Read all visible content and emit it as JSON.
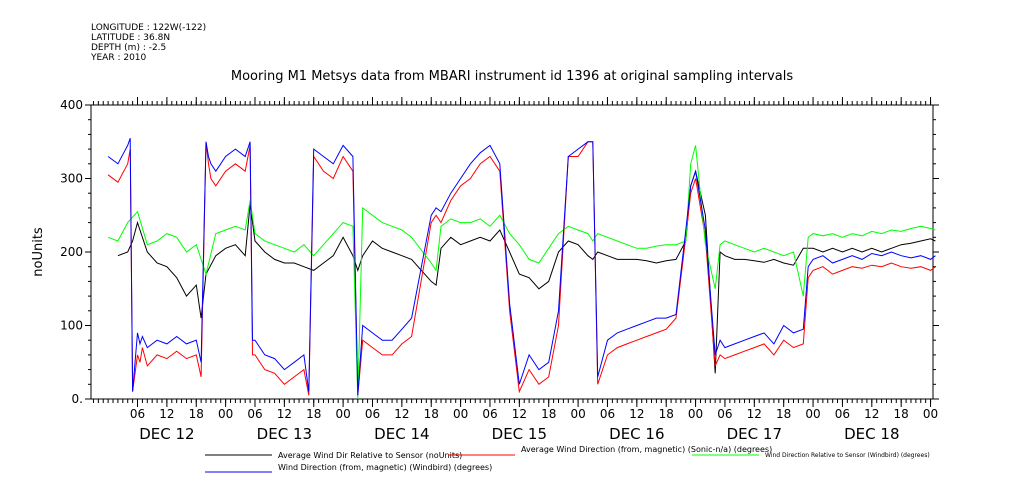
{
  "metadata": {
    "longitude": "LONGITUDE : 122W(-122)",
    "latitude": "LATITUDE : 36.8N",
    "depth": "DEPTH (m) : -2.5",
    "year": "YEAR : 2010"
  },
  "chart_data": {
    "type": "line",
    "title": "Mooring M1 Metsys data from MBARI instrument id 1396 at original sampling intervals",
    "ylabel": "noUnits",
    "ylim": [
      0,
      400
    ],
    "yticks": [
      0,
      100,
      200,
      300,
      400
    ],
    "ytick_labels": [
      "0.",
      "100",
      "200",
      "300",
      "400"
    ],
    "xlim_hours": [
      -6,
      6
    ],
    "hour_ticks": [
      6,
      12,
      18,
      24,
      30,
      36,
      42,
      48,
      54,
      60,
      66,
      72,
      78,
      84,
      90,
      96,
      102,
      108,
      114,
      120,
      126,
      132,
      138,
      144,
      150,
      156,
      162,
      168
    ],
    "hour_labels": [
      "06",
      "12",
      "18",
      "00",
      "06",
      "12",
      "18",
      "00",
      "06",
      "12",
      "18",
      "00",
      "06",
      "12",
      "18",
      "00",
      "06",
      "12",
      "18",
      "00",
      "06",
      "12",
      "18",
      "00",
      "06",
      "12",
      "18",
      "00"
    ],
    "day_labels": [
      "DEC 12",
      "DEC 13",
      "DEC 14",
      "DEC 15",
      "DEC 16",
      "DEC 17",
      "DEC 18"
    ],
    "x_start": "2010-12-12T00:00",
    "x_end": "2010-12-19T02:00",
    "series": [
      {
        "name": "Average Wind Dir Relative to Sensor (noUnits)",
        "color": "#000000",
        "x": [
          2,
          4,
          5,
          6,
          8,
          10,
          12,
          14,
          16,
          18,
          19,
          20,
          22,
          24,
          26,
          28,
          29,
          30,
          32,
          34,
          36,
          38,
          40,
          42,
          44,
          46,
          48,
          50,
          51,
          52,
          54,
          56,
          58,
          60,
          62,
          66,
          67,
          68,
          70,
          72,
          74,
          76,
          78,
          80,
          82,
          84,
          86,
          88,
          90,
          92,
          94,
          96,
          98,
          99,
          100,
          102,
          104,
          106,
          108,
          110,
          112,
          114,
          116,
          118,
          119,
          120,
          122,
          124,
          125,
          126,
          128,
          130,
          132,
          134,
          136,
          138,
          140,
          142,
          144,
          146,
          148,
          150,
          152,
          154,
          156,
          158,
          160,
          162,
          164,
          166,
          168,
          169
        ],
        "y": [
          195,
          200,
          215,
          240,
          200,
          185,
          180,
          165,
          140,
          155,
          110,
          170,
          195,
          205,
          210,
          195,
          265,
          215,
          200,
          190,
          185,
          185,
          180,
          175,
          185,
          195,
          220,
          195,
          175,
          195,
          215,
          205,
          200,
          195,
          190,
          160,
          155,
          205,
          220,
          210,
          215,
          220,
          215,
          230,
          200,
          170,
          165,
          150,
          160,
          200,
          215,
          210,
          195,
          190,
          200,
          195,
          190,
          190,
          190,
          188,
          185,
          188,
          190,
          215,
          290,
          310,
          250,
          35,
          200,
          195,
          190,
          190,
          188,
          186,
          190,
          185,
          182,
          205,
          205,
          200,
          205,
          200,
          205,
          200,
          205,
          200,
          205,
          210,
          212,
          215,
          218,
          215
        ]
      },
      {
        "name": "Average Wind Direction (from, magnetic) (Sonic-n/a) (degrees)",
        "color": "#ff0000",
        "x": [
          0,
          2,
          4,
          4.5,
          5,
          6,
          6.5,
          7,
          8,
          10,
          12,
          14,
          16,
          18,
          19,
          20,
          20.5,
          21,
          22,
          24,
          26,
          28,
          29,
          29.5,
          30,
          32,
          34,
          36,
          38,
          40,
          41,
          42,
          44,
          46,
          48,
          50,
          51,
          52,
          54,
          56,
          58,
          60,
          62,
          66,
          67,
          68,
          70,
          72,
          74,
          76,
          78,
          80,
          82,
          84,
          86,
          88,
          90,
          92,
          94,
          96,
          98,
          99,
          100,
          102,
          104,
          106,
          108,
          110,
          112,
          114,
          116,
          118,
          119,
          120,
          122,
          124,
          125,
          126,
          128,
          130,
          132,
          134,
          136,
          138,
          140,
          142,
          143,
          144,
          146,
          148,
          150,
          152,
          154,
          156,
          158,
          160,
          162,
          164,
          166,
          168,
          169
        ],
        "y": [
          305,
          295,
          320,
          340,
          10,
          60,
          50,
          70,
          45,
          60,
          55,
          65,
          55,
          60,
          30,
          350,
          320,
          300,
          290,
          310,
          320,
          310,
          345,
          60,
          60,
          40,
          35,
          20,
          30,
          40,
          5,
          330,
          310,
          300,
          330,
          310,
          5,
          80,
          70,
          60,
          60,
          75,
          85,
          240,
          250,
          240,
          270,
          290,
          300,
          320,
          330,
          310,
          120,
          10,
          40,
          20,
          30,
          100,
          330,
          330,
          350,
          350,
          20,
          60,
          70,
          75,
          80,
          85,
          90,
          95,
          110,
          220,
          280,
          300,
          220,
          45,
          60,
          55,
          60,
          65,
          70,
          75,
          60,
          80,
          70,
          75,
          165,
          175,
          180,
          170,
          175,
          180,
          178,
          182,
          180,
          185,
          180,
          178,
          180,
          175,
          180
        ]
      },
      {
        "name": "Wind Direction Relative to Sensor (Windbird) (degrees)",
        "color": "#00ff00",
        "x": [
          0,
          2,
          4,
          6,
          8,
          10,
          12,
          14,
          16,
          18,
          20,
          22,
          24,
          26,
          28,
          29,
          30,
          32,
          34,
          36,
          38,
          40,
          42,
          44,
          46,
          48,
          50,
          51,
          52,
          54,
          56,
          58,
          60,
          62,
          66,
          67,
          68,
          70,
          72,
          74,
          76,
          78,
          80,
          82,
          84,
          86,
          88,
          90,
          92,
          94,
          96,
          98,
          99,
          100,
          102,
          104,
          106,
          108,
          110,
          112,
          114,
          116,
          118,
          119,
          120,
          122,
          124,
          125,
          126,
          128,
          130,
          132,
          134,
          136,
          138,
          140,
          142,
          143,
          144,
          146,
          148,
          150,
          152,
          154,
          156,
          158,
          160,
          162,
          164,
          166,
          168,
          169
        ],
        "y": [
          220,
          215,
          240,
          255,
          210,
          215,
          225,
          220,
          200,
          210,
          170,
          225,
          230,
          235,
          230,
          270,
          225,
          215,
          210,
          205,
          200,
          210,
          195,
          210,
          225,
          240,
          235,
          0,
          260,
          250,
          240,
          235,
          230,
          220,
          185,
          175,
          235,
          245,
          240,
          240,
          245,
          235,
          250,
          225,
          210,
          190,
          185,
          205,
          225,
          235,
          230,
          225,
          215,
          225,
          220,
          215,
          210,
          205,
          205,
          208,
          210,
          210,
          215,
          320,
          345,
          210,
          150,
          210,
          215,
          210,
          205,
          200,
          205,
          200,
          195,
          200,
          140,
          220,
          225,
          222,
          225,
          220,
          225,
          222,
          228,
          225,
          230,
          228,
          232,
          235,
          232,
          230
        ]
      },
      {
        "name": "Wind Direction (from, magnetic) (Windbird) (degrees)",
        "color": "#0000ff",
        "x": [
          0,
          2,
          4,
          4.5,
          5,
          6,
          6.5,
          7,
          8,
          10,
          12,
          14,
          16,
          18,
          19,
          20,
          20.5,
          21,
          22,
          24,
          26,
          28,
          29,
          29.5,
          30,
          32,
          34,
          36,
          38,
          40,
          41,
          42,
          44,
          46,
          48,
          50,
          51,
          52,
          54,
          56,
          58,
          60,
          62,
          66,
          67,
          68,
          70,
          72,
          74,
          76,
          78,
          80,
          82,
          84,
          86,
          88,
          90,
          92,
          94,
          96,
          98,
          99,
          100,
          102,
          104,
          106,
          108,
          110,
          112,
          114,
          116,
          118,
          119,
          120,
          122,
          124,
          125,
          126,
          128,
          130,
          132,
          134,
          136,
          138,
          140,
          142,
          143,
          144,
          146,
          148,
          150,
          152,
          154,
          156,
          158,
          160,
          162,
          164,
          166,
          168,
          169
        ],
        "y": [
          330,
          320,
          345,
          355,
          10,
          90,
          75,
          85,
          70,
          80,
          75,
          85,
          75,
          80,
          50,
          350,
          330,
          320,
          310,
          330,
          340,
          330,
          350,
          80,
          80,
          60,
          55,
          40,
          50,
          60,
          10,
          340,
          330,
          320,
          345,
          330,
          5,
          100,
          90,
          80,
          80,
          95,
          110,
          250,
          260,
          255,
          280,
          300,
          320,
          335,
          345,
          320,
          130,
          20,
          60,
          40,
          50,
          120,
          330,
          340,
          350,
          350,
          30,
          80,
          90,
          95,
          100,
          105,
          110,
          110,
          115,
          230,
          290,
          310,
          230,
          60,
          80,
          70,
          75,
          80,
          85,
          90,
          75,
          100,
          90,
          95,
          180,
          190,
          195,
          185,
          190,
          195,
          190,
          198,
          195,
          200,
          195,
          192,
          195,
          190,
          195
        ]
      }
    ]
  }
}
